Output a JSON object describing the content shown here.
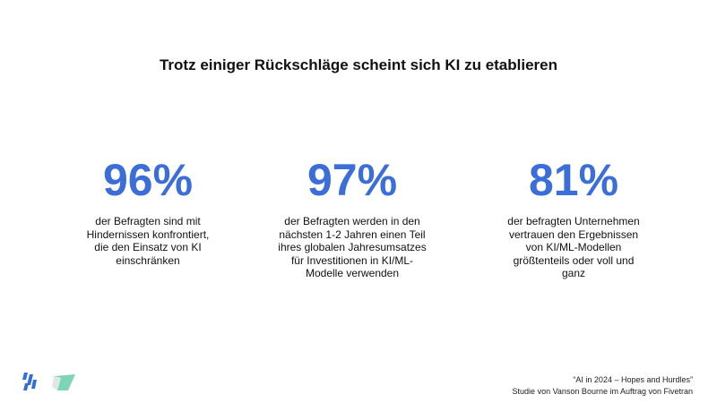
{
  "header": {
    "title": "Trotz einiger Rückschläge scheint sich KI zu etablieren"
  },
  "stats": [
    {
      "value": "96%",
      "lines": [
        "der Befragten sind mit",
        "Hindernissen konfrontiert,",
        "die den Einsatz von KI",
        "einschränken"
      ]
    },
    {
      "value": "97%",
      "lines": [
        "der Befragten werden in den",
        "nächsten 1-2 Jahren einen Teil",
        "ihres globalen Jahresumsatzes",
        "für Investitionen in KI/ML-",
        "Modelle verwenden"
      ]
    },
    {
      "value": "81%",
      "lines": [
        "der befragten Unternehmen",
        "vertrauen den Ergebnissen",
        "von KI/ML-Modellen",
        "größtenteils oder voll und",
        "ganz"
      ]
    }
  ],
  "footer": {
    "source_lines": [
      "“AI in 2024 – Hopes and Hurdles”",
      "Studie von Vanson Bourne im Auftrag von Fivetran"
    ]
  }
}
